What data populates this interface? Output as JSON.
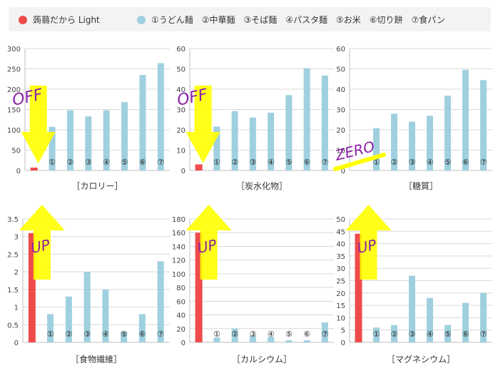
{
  "legend": {
    "series_light": "蒟蒻だから Light",
    "series_noodles": "①うどん麺　②中華麺　③そば麺　④パスタ麺　⑤お米　⑥切り餅　⑦食パン"
  },
  "colors": {
    "light": "#ef4b4b",
    "others": "#9fd0df",
    "arrow": "#ffff00",
    "annot": "#8b1fa8"
  },
  "chart_data": [
    {
      "type": "bar",
      "title": "［カロリー］",
      "ylim": [
        0,
        300
      ],
      "ticks": [
        0,
        50,
        100,
        150,
        200,
        250,
        300
      ],
      "categories": [
        "",
        "①",
        "②",
        "③",
        "④",
        "⑤",
        "⑥",
        "⑦"
      ],
      "values": [
        7,
        107,
        148,
        133,
        148,
        168,
        235,
        264
      ],
      "annotation": "OFF",
      "arrow": "down"
    },
    {
      "type": "bar",
      "title": "［炭水化物］",
      "ylim": [
        0,
        60
      ],
      "ticks": [
        0,
        10,
        20,
        30,
        40,
        50,
        60
      ],
      "categories": [
        "",
        "①",
        "②",
        "③",
        "④",
        "⑤",
        "⑥",
        "⑦"
      ],
      "values": [
        3,
        21.6,
        29.2,
        26,
        28.4,
        37.1,
        50.3,
        46.7
      ],
      "annotation": "OFF",
      "arrow": "down"
    },
    {
      "type": "bar",
      "title": "［糖質］",
      "ylim": [
        0,
        60
      ],
      "ticks": [
        0,
        10,
        20,
        30,
        40,
        50,
        60
      ],
      "categories": [
        "",
        "①",
        "②",
        "③",
        "④",
        "⑤",
        "⑥",
        "⑦"
      ],
      "values": [
        0,
        20.8,
        27.9,
        24,
        26.9,
        36.8,
        49.5,
        44.4
      ],
      "annotation": "ZERO",
      "arrow": "none"
    },
    {
      "type": "bar",
      "title": "［食物繊維］",
      "ylim": [
        0,
        3.5
      ],
      "ticks": [
        0,
        0.5,
        1,
        1.5,
        2,
        2.5,
        3,
        3.5
      ],
      "categories": [
        "",
        "①",
        "②",
        "③",
        "④",
        "⑤",
        "⑥",
        "⑦"
      ],
      "values": [
        3.1,
        0.8,
        1.3,
        2.0,
        1.5,
        0.3,
        0.8,
        2.3
      ],
      "annotation": "UP",
      "arrow": "up"
    },
    {
      "type": "bar",
      "title": "［カルシウム］",
      "ylim": [
        0,
        180
      ],
      "ticks": [
        0,
        20,
        40,
        60,
        80,
        100,
        120,
        140,
        160,
        180
      ],
      "categories": [
        "",
        "①",
        "②",
        "③",
        "④",
        "⑤",
        "⑥",
        "⑦"
      ],
      "values": [
        160,
        7,
        20,
        10,
        8,
        3,
        3,
        29
      ],
      "annotation": "UP",
      "arrow": "up"
    },
    {
      "type": "bar",
      "title": "［マグネシウム］",
      "ylim": [
        0,
        50
      ],
      "ticks": [
        0,
        5,
        10,
        15,
        20,
        25,
        30,
        35,
        40,
        45,
        50
      ],
      "categories": [
        "",
        "①",
        "②",
        "③",
        "④",
        "⑤",
        "⑥",
        "⑦"
      ],
      "values": [
        44,
        6,
        7,
        27,
        18,
        7,
        16,
        20
      ],
      "annotation": "UP",
      "arrow": "up"
    }
  ]
}
